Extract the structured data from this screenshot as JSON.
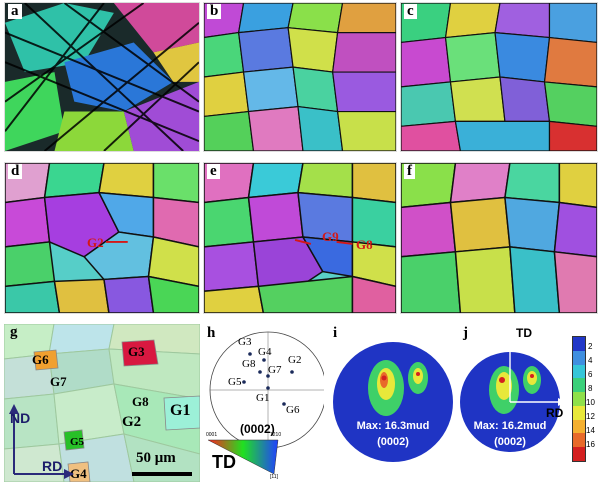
{
  "panels": {
    "a": "a",
    "b": "b",
    "c": "c",
    "d": "d",
    "e": "e",
    "f": "f",
    "g": "g",
    "h": "h",
    "i": "i",
    "j": "j"
  },
  "ebsd_labels": {
    "d": [
      "G2"
    ],
    "e": [
      "G9",
      "G8"
    ]
  },
  "g_map": {
    "grains": [
      "G6",
      "G3",
      "G7",
      "G8",
      "G1",
      "G2",
      "G5",
      "G4"
    ],
    "axis_nd": "ND",
    "axis_rd": "RD",
    "scale_bar": "50 μm"
  },
  "pole_figure_h": {
    "grain_labels": [
      "G3",
      "G4",
      "G2",
      "G8",
      "G7",
      "G5",
      "G1",
      "G6"
    ],
    "plane": "(0002)"
  },
  "ipf_legend": {
    "label": "TD",
    "corner_0001": "0001",
    "corner_1010": "1210",
    "corner_1120": "[11]"
  },
  "pole_figure_i": {
    "max": "Max: 16.3mud",
    "plane": "(0002)"
  },
  "pole_figure_j": {
    "max": "Max: 16.2mud",
    "plane": "(0002)",
    "axis_td": "TD",
    "axis_rd": "RD"
  },
  "colorbar": {
    "ticks": [
      "2",
      "4",
      "6",
      "8",
      "10",
      "12",
      "14",
      "16"
    ],
    "colors": [
      "#2137c8",
      "#3f8fe0",
      "#35c6d8",
      "#3bd07a",
      "#8fe04a",
      "#e8e83a",
      "#f4b030",
      "#e86a2a",
      "#d42020"
    ]
  }
}
